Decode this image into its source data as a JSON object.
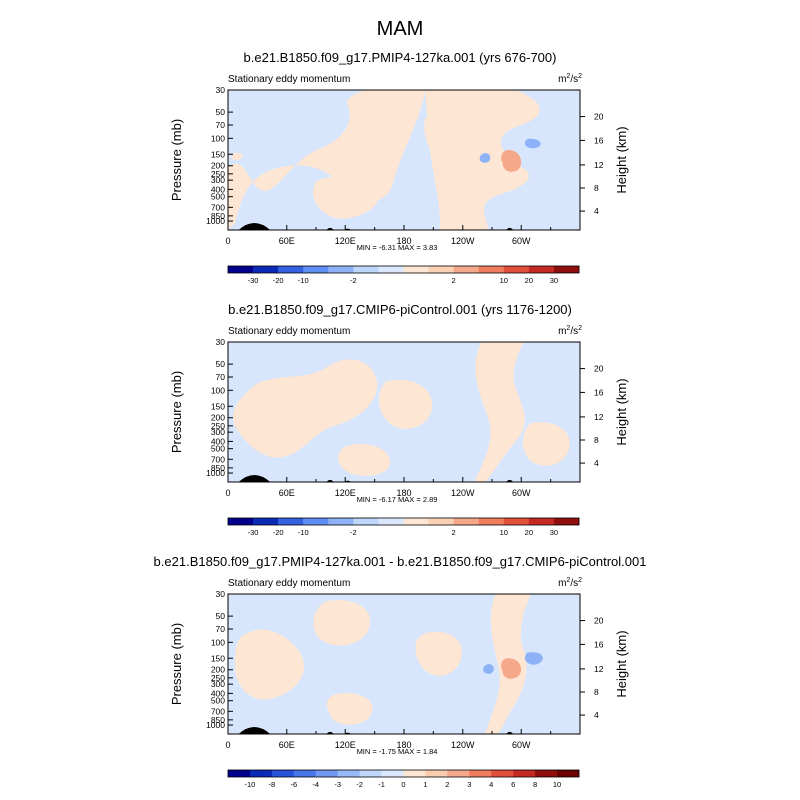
{
  "figure_title": "MAM",
  "chart_data": [
    {
      "type": "contour",
      "title": "b.e21.B1850.f09_g17.PMIP4-127ka.001 (yrs 676-700)",
      "left_label": "Stationary eddy momentum",
      "units_base": "m",
      "units_sup1": "2",
      "units_mid": "/s",
      "units_sup2": "2",
      "ylabel": "Pressure (mb)",
      "ylabel_right": "Height (km)",
      "y_ticks": [
        "30",
        "50",
        "70",
        "100",
        "150",
        "200",
        "250",
        "300",
        "400",
        "500",
        "700",
        "850",
        "1000"
      ],
      "height_ticks": [
        "20",
        "16",
        "12",
        "8",
        "4"
      ],
      "x_ticks": [
        "0",
        "60E",
        "120E",
        "180",
        "120W",
        "60W"
      ],
      "stats_text": "MIN = -6.31   MAX = 3.83",
      "colorbar_labels": [
        "-30",
        "-20",
        "-10",
        "-2",
        "2",
        "10",
        "20",
        "30"
      ],
      "min": -6.31,
      "max": 3.83
    },
    {
      "type": "contour",
      "title": "b.e21.B1850.f09_g17.CMIP6-piControl.001 (yrs 1176-1200)",
      "left_label": "Stationary eddy momentum",
      "units_base": "m",
      "units_sup1": "2",
      "units_mid": "/s",
      "units_sup2": "2",
      "ylabel": "Pressure (mb)",
      "ylabel_right": "Height (km)",
      "y_ticks": [
        "30",
        "50",
        "70",
        "100",
        "150",
        "200",
        "250",
        "300",
        "400",
        "500",
        "700",
        "850",
        "1000"
      ],
      "height_ticks": [
        "20",
        "16",
        "12",
        "8",
        "4"
      ],
      "x_ticks": [
        "0",
        "60E",
        "120E",
        "180",
        "120W",
        "60W"
      ],
      "stats_text": "MIN = -6.17   MAX = 2.89",
      "colorbar_labels": [
        "-30",
        "-20",
        "-10",
        "-2",
        "2",
        "10",
        "20",
        "30"
      ],
      "min": -6.17,
      "max": 2.89
    },
    {
      "type": "contour",
      "title": "b.e21.B1850.f09_g17.PMIP4-127ka.001 - b.e21.B1850.f09_g17.CMIP6-piControl.001",
      "left_label": "Stationary eddy momentum",
      "units_base": "m",
      "units_sup1": "2",
      "units_mid": "/s",
      "units_sup2": "2",
      "ylabel": "Pressure (mb)",
      "ylabel_right": "Height (km)",
      "y_ticks": [
        "30",
        "50",
        "70",
        "100",
        "150",
        "200",
        "250",
        "300",
        "400",
        "500",
        "700",
        "850",
        "1000"
      ],
      "height_ticks": [
        "20",
        "16",
        "12",
        "8",
        "4"
      ],
      "x_ticks": [
        "0",
        "60E",
        "120E",
        "180",
        "120W",
        "60W"
      ],
      "stats_text": "MIN = -1.75   MAX = 1.84",
      "colorbar_labels": [
        "-10",
        "-8",
        "-6",
        "-4",
        "-3",
        "-2",
        "-1",
        "0",
        "1",
        "2",
        "3",
        "4",
        "6",
        "8",
        "10"
      ],
      "min": -1.75,
      "max": 1.84
    }
  ],
  "colors": {
    "colorbar_8": [
      "#00008c",
      "#0c2ab8",
      "#3361e0",
      "#5e8ef2",
      "#8db2f7",
      "#bfd6fb",
      "#dbe8fd",
      "#fde6d3",
      "#fbd1b6",
      "#f6a98a",
      "#ef7d5e",
      "#e2503c",
      "#c42a22",
      "#8f0f0f",
      "#6b0000"
    ],
    "colorbar_15": [
      "#00008c",
      "#0c2ab8",
      "#2a52d8",
      "#4877ea",
      "#6f99f3",
      "#97b9f8",
      "#c0d6fb",
      "#dbe8fd",
      "#fde6d3",
      "#fbcdb0",
      "#f6a98a",
      "#ef7d5e",
      "#e2503c",
      "#c42a22",
      "#8f0f0f",
      "#6b0000"
    ],
    "neg_light": "#d7e6fc",
    "pos_light": "#fde6d3",
    "neg_mid": "#8db2f7",
    "pos_mid": "#f6a98a",
    "topo": "#000000"
  }
}
